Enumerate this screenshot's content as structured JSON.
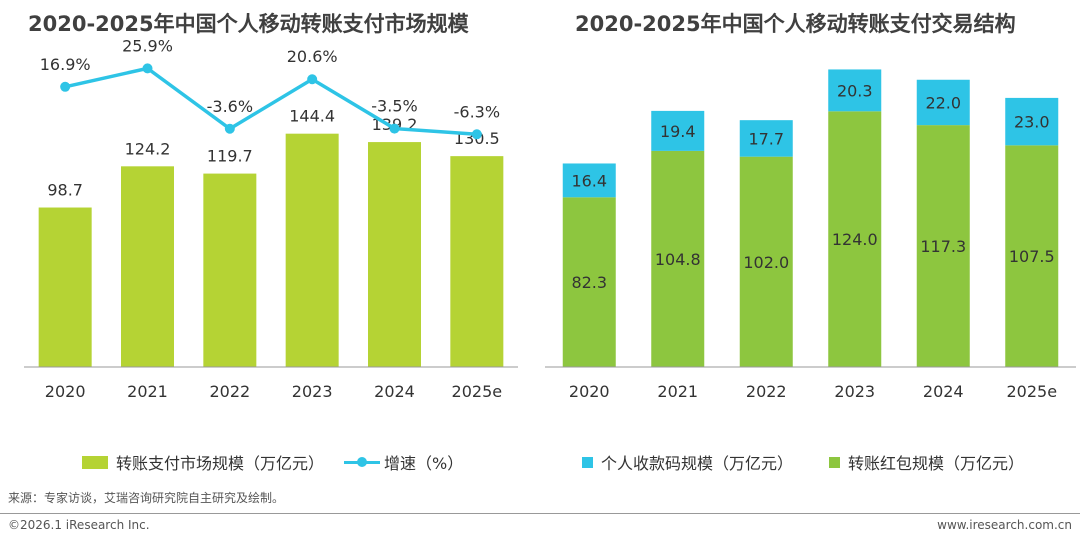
{
  "chart_data": [
    {
      "type": "bar",
      "title": "2020-2025年中国个人移动转账支付市场规模",
      "categories": [
        "2020",
        "2021",
        "2022",
        "2023",
        "2024",
        "2025e"
      ],
      "series": [
        {
          "name": "转账支付市场规模（万亿元）",
          "type": "bar",
          "color": "#b5d334",
          "values": [
            98.7,
            124.2,
            119.7,
            144.4,
            139.2,
            130.5
          ]
        },
        {
          "name": "增速（%）",
          "type": "line",
          "color": "#2ec4e6",
          "values": [
            16.9,
            25.9,
            -3.6,
            20.6,
            -3.5,
            -6.3
          ],
          "labels": [
            "16.9%",
            "25.9%",
            "-3.6%",
            "20.6%",
            "-3.5%",
            "-6.3%"
          ]
        }
      ],
      "bar_labels": [
        "98.7",
        "124.2",
        "119.7",
        "144.4",
        "139.2",
        "130.5"
      ],
      "ylim": [
        0,
        190
      ],
      "line_ylim": [
        -120,
        30
      ],
      "grid": false,
      "legend_position": "bottom"
    },
    {
      "type": "bar",
      "stacked": true,
      "title": "2020-2025年中国个人移动转账支付交易结构",
      "categories": [
        "2020",
        "2021",
        "2022",
        "2023",
        "2024",
        "2025e"
      ],
      "series": [
        {
          "name": "转账红包规模（万亿元）",
          "color": "#8dc63f",
          "values": [
            82.3,
            104.8,
            102.0,
            124.0,
            117.3,
            107.5
          ],
          "labels": [
            "82.3",
            "104.8",
            "102.0",
            "124.0",
            "117.3",
            "107.5"
          ]
        },
        {
          "name": "个人收款码规模（万亿元）",
          "color": "#2ec4e6",
          "values": [
            16.4,
            19.4,
            17.7,
            20.3,
            22.0,
            23.0
          ],
          "labels": [
            "16.4",
            "19.4",
            "17.7",
            "20.3",
            "22.0",
            "23.0"
          ]
        }
      ],
      "ylim": [
        0,
        145
      ],
      "grid": false,
      "legend_position": "bottom"
    }
  ],
  "legend_left": {
    "bar_label": "转账支付市场规模（万亿元）",
    "line_label": "增速（%）"
  },
  "legend_right": {
    "qr_label": "个人收款码规模（万亿元）",
    "red_label": "转账红包规模（万亿元）"
  },
  "source": "来源：专家访谈，艾瑞咨询研究院自主研究及绘制。",
  "footer": {
    "copyright": "©2026.1 iResearch Inc.",
    "website": "www.iresearch.com.cn"
  }
}
